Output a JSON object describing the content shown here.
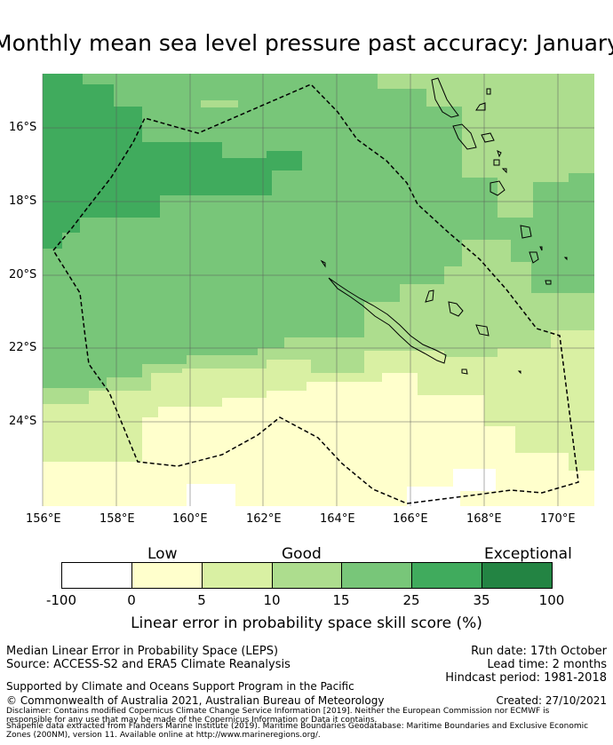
{
  "title": "Monthly mean sea level pressure past accuracy: January",
  "map": {
    "lat_labels": [
      "16°S",
      "18°S",
      "20°S",
      "22°S",
      "24°S"
    ],
    "lon_labels": [
      "156°E",
      "158°E",
      "160°E",
      "162°E",
      "164°E",
      "166°E",
      "168°E",
      "170°E"
    ],
    "colors": {
      "c35": "#40ab5d",
      "c25": "#78c679",
      "c15": "#addd8e",
      "c10": "#d9f0a3",
      "c5": "#ffffcc",
      "c0": "#ffffff",
      "grid": "#5a5a5a",
      "boundary": "#000000"
    }
  },
  "legend": {
    "categories": [
      "Low",
      "Good",
      "Exceptional"
    ],
    "ticks": [
      "-100",
      "0",
      "5",
      "10",
      "15",
      "25",
      "35",
      "100"
    ],
    "bins": [
      {
        "from": -100,
        "to": 0,
        "color": "#ffffff"
      },
      {
        "from": 0,
        "to": 5,
        "color": "#ffffcc"
      },
      {
        "from": 5,
        "to": 10,
        "color": "#d9f0a3"
      },
      {
        "from": 10,
        "to": 15,
        "color": "#addd8e"
      },
      {
        "from": 15,
        "to": 25,
        "color": "#78c679"
      },
      {
        "from": 25,
        "to": 35,
        "color": "#40ab5d"
      },
      {
        "from": 35,
        "to": 100,
        "color": "#238443"
      }
    ],
    "title": "Linear error in probability space skill score (%)"
  },
  "footer": {
    "description": "Median Linear Error in Probability Space (LEPS)",
    "source": "Source: ACCESS-S2 and ERA5 Climate Reanalysis",
    "run_date": "Run date: 17th October",
    "lead_time": "Lead time: 2 months",
    "hindcast": "Hindcast period: 1981-2018",
    "support": "Supported by Climate and Oceans Support Program in the Pacific",
    "copyright": "© Commonwealth of Australia 2021, Australian Bureau of Meteorology",
    "created": "Created: 27/10/2021",
    "disclaimer_1": "Disclaimer: Contains modified Copernicus Climate Change Service Information [2019]. Neither the European Commission nor ECMWF is",
    "disclaimer_2": "responsible for any use that may be made of the Copernicus Information or Data it contains.",
    "shapefile_1": "Shapefile data extracted from Flanders Marine Institute (2019). Maritime Boundaries Geodatabase: Maritime Boundaries and Exclusive Economic",
    "shapefile_2": "Zones (200NM), version 11. Available online at http://www.marineregions.org/."
  }
}
